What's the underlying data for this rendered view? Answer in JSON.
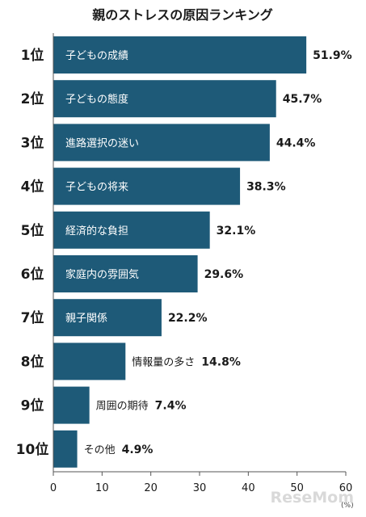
{
  "chart_data": {
    "type": "bar",
    "orientation": "horizontal",
    "title": "親のストレスの原因ランキング",
    "ranks": [
      "1位",
      "2位",
      "3位",
      "4位",
      "5位",
      "6位",
      "7位",
      "8位",
      "9位",
      "10位"
    ],
    "categories": [
      "子どもの成績",
      "子どもの態度",
      "進路選択の迷い",
      "子どもの将来",
      "経済的な負担",
      "家庭内の雰囲気",
      "親子関係",
      "情報量の多さ",
      "周囲の期待",
      "その他"
    ],
    "values": [
      51.9,
      45.7,
      44.4,
      38.3,
      32.1,
      29.6,
      22.2,
      14.8,
      7.4,
      4.9
    ],
    "value_labels": [
      "51.9%",
      "45.7%",
      "44.4%",
      "38.3%",
      "32.1%",
      "29.6%",
      "22.2%",
      "14.8%",
      "7.4%",
      "4.9%"
    ],
    "xlim": [
      0,
      60
    ],
    "xticks": [
      "0",
      "10",
      "20",
      "30",
      "40",
      "50",
      "60"
    ],
    "unit": "(%)",
    "bar_color": "#1e5a78",
    "grid": false
  },
  "watermark": "ReseMom"
}
